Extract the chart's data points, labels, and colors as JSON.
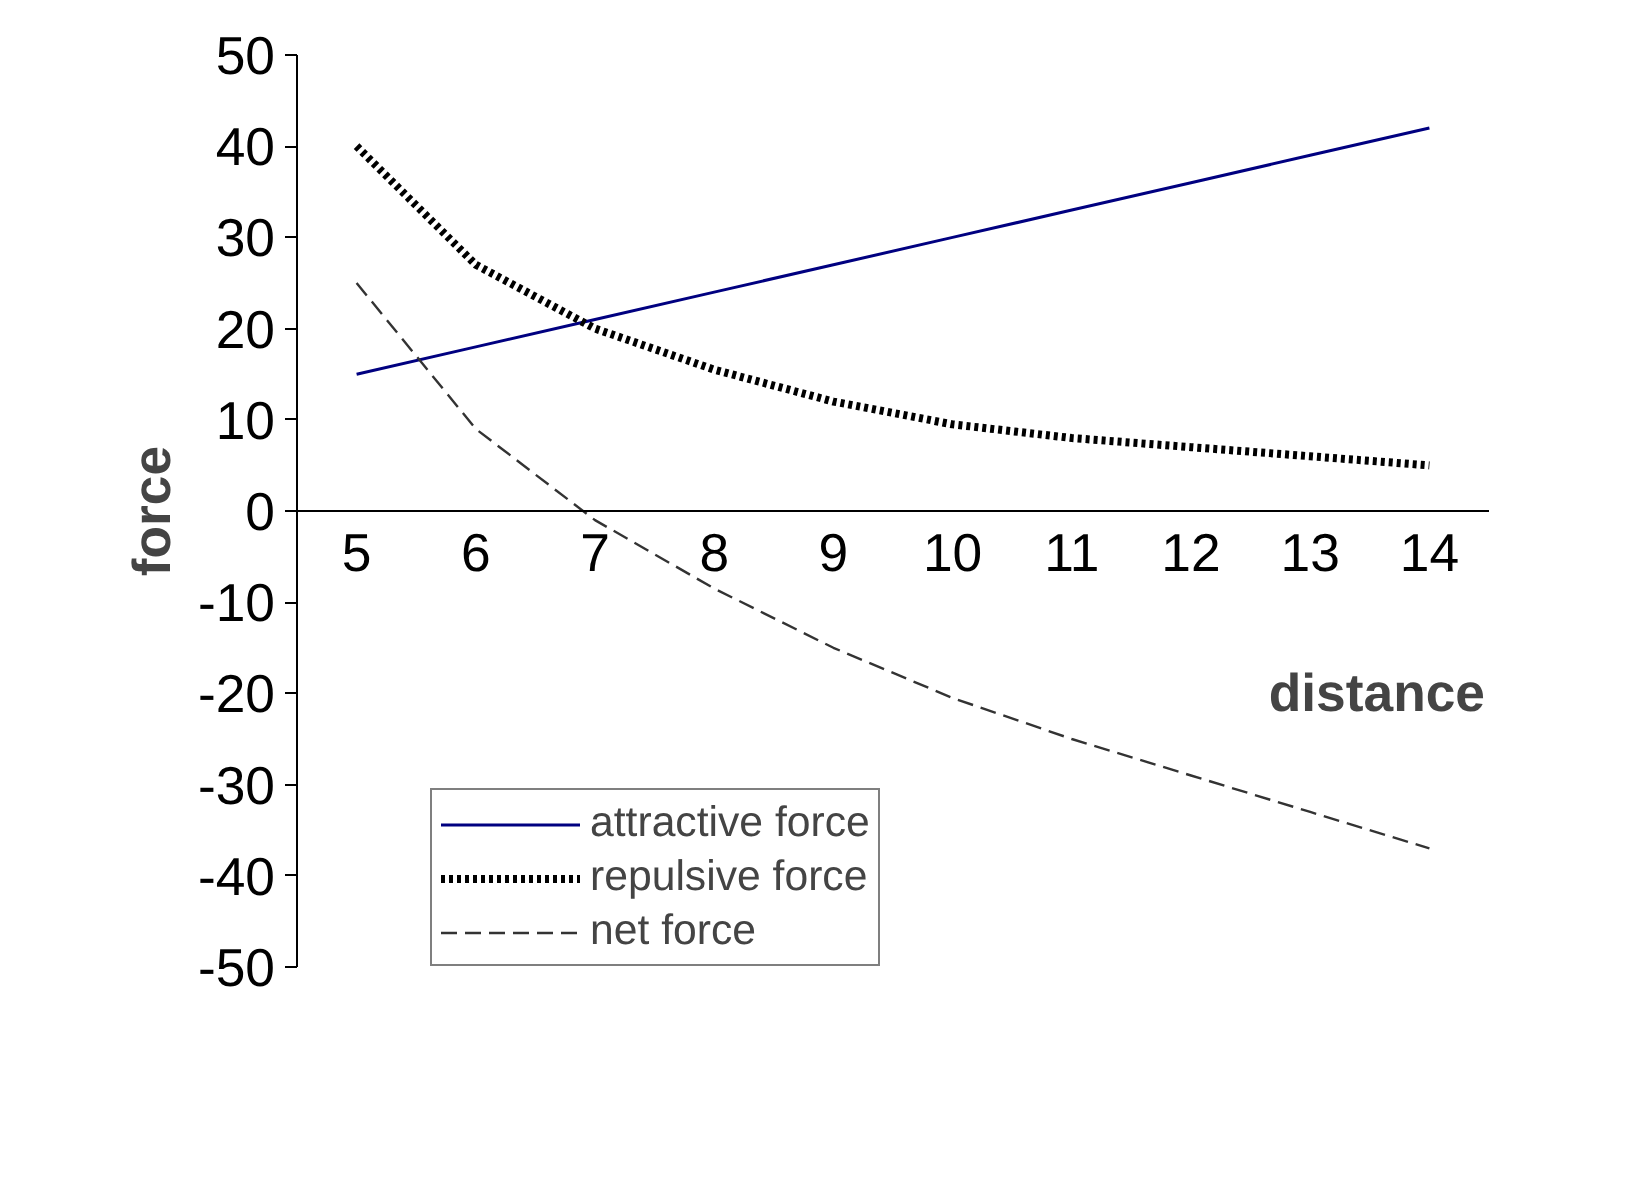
{
  "chart_data": {
    "type": "line",
    "xlabel": "distance",
    "ylabel": "force",
    "categories": [
      "5",
      "6",
      "7",
      "8",
      "9",
      "10",
      "11",
      "12",
      "13",
      "14"
    ],
    "ylim": [
      -50,
      50
    ],
    "yticks": [
      -50,
      -40,
      -30,
      -20,
      -10,
      0,
      10,
      20,
      30,
      40,
      50
    ],
    "grid": false,
    "legend": "bottom",
    "marker": "none",
    "series": [
      {
        "name": "attractive force",
        "color": "#000080",
        "line_style": "solid",
        "values": [
          15,
          18,
          21,
          24,
          27,
          30,
          33,
          36,
          39,
          42
        ]
      },
      {
        "name": "repulsive force",
        "color": "#000000",
        "line_style": "dotted",
        "values": [
          40,
          27,
          20,
          15.5,
          12,
          9.5,
          8,
          7,
          6,
          5
        ]
      },
      {
        "name": "net force",
        "color": "#333333",
        "line_style": "dashed",
        "values": [
          25,
          9,
          -1,
          -8.5,
          -15,
          -20.5,
          -25,
          -29,
          -33,
          -37
        ]
      }
    ]
  }
}
